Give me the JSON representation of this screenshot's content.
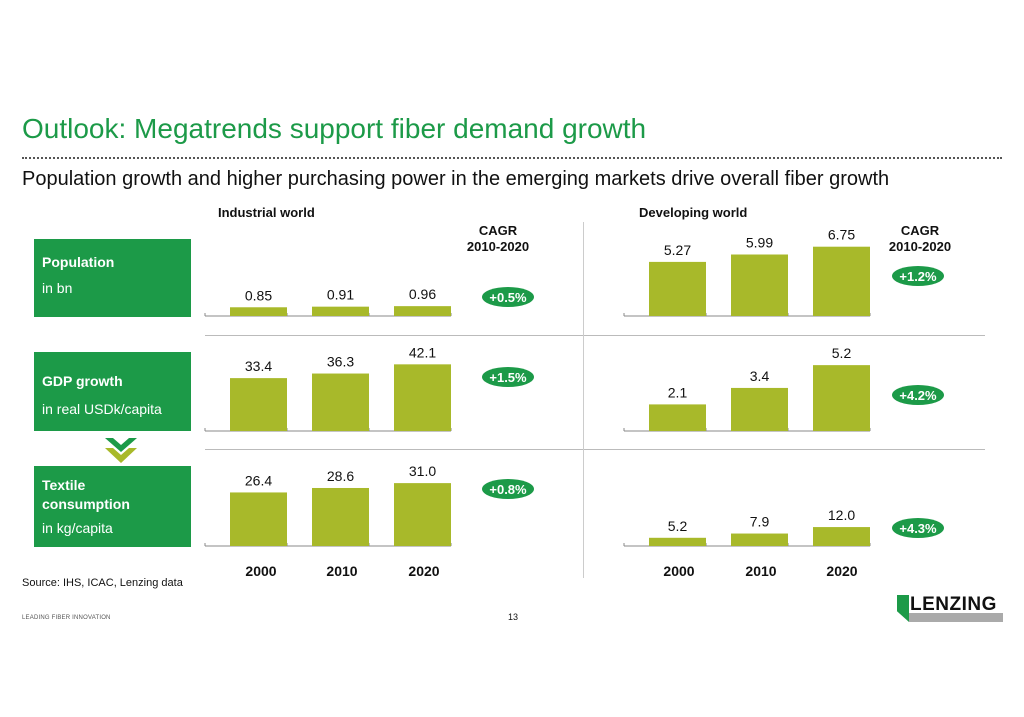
{
  "title": "Outlook: Megatrends support fiber demand growth",
  "subtitle": "Population growth and higher purchasing power in the emerging markets drive overall fiber growth",
  "sections": {
    "industrial": "Industrial world",
    "developing": "Developing world"
  },
  "cagr_header": {
    "line1": "CAGR",
    "line2": "2010-2020"
  },
  "rows": [
    {
      "title": "Population",
      "unit": "in bn"
    },
    {
      "title": "GDP growth",
      "unit": "in real USDk/capita"
    },
    {
      "title": "Textile consumption",
      "unit": "in kg/capita"
    }
  ],
  "years": [
    "2000",
    "2010",
    "2020"
  ],
  "source": "Source: IHS, ICAC, Lenzing data",
  "footer": "LEADING FIBER INNOVATION",
  "page_number": "13",
  "logo_text": "LENZING",
  "colors": {
    "brand_green": "#1c9a48",
    "bar_olive": "#a8b92a",
    "badge_green": "#1c9a48"
  },
  "chart_data": [
    {
      "type": "bar",
      "title": "Population - Industrial world",
      "ylabel": "in bn",
      "categories": [
        "2000",
        "2010",
        "2020"
      ],
      "values": [
        0.85,
        0.91,
        0.96
      ],
      "labels": [
        "0.85",
        "0.91",
        "0.96"
      ],
      "cagr": "+0.5%",
      "ymax": 7.5
    },
    {
      "type": "bar",
      "title": "Population - Developing world",
      "ylabel": "in bn",
      "categories": [
        "2000",
        "2010",
        "2020"
      ],
      "values": [
        5.27,
        5.99,
        6.75
      ],
      "labels": [
        "5.27",
        "5.99",
        "6.75"
      ],
      "cagr": "+1.2%",
      "ymax": 7.5
    },
    {
      "type": "bar",
      "title": "GDP growth - Industrial world",
      "ylabel": "in real USDk/capita",
      "categories": [
        "2000",
        "2010",
        "2020"
      ],
      "values": [
        33.4,
        36.3,
        42.1
      ],
      "labels": [
        "33.4",
        "36.3",
        "42.1"
      ],
      "cagr": "+1.5%",
      "ymax": 48
    },
    {
      "type": "bar",
      "title": "GDP growth - Developing world",
      "ylabel": "in real USDk/capita",
      "categories": [
        "2000",
        "2010",
        "2020"
      ],
      "values": [
        2.1,
        3.4,
        5.2
      ],
      "labels": [
        "2.1",
        "3.4",
        "5.2"
      ],
      "cagr": "+4.2%",
      "ymax": 6.0
    },
    {
      "type": "bar",
      "title": "Textile consumption - Industrial world",
      "ylabel": "in kg/capita",
      "categories": [
        "2000",
        "2010",
        "2020"
      ],
      "values": [
        26.4,
        28.6,
        31.0
      ],
      "labels": [
        "26.4",
        "28.6",
        "31.0"
      ],
      "cagr": "+0.8%",
      "ymax": 35
    },
    {
      "type": "bar",
      "title": "Textile consumption - Developing world",
      "ylabel": "in kg/capita",
      "categories": [
        "2000",
        "2010",
        "2020"
      ],
      "values": [
        5.2,
        7.9,
        12.0
      ],
      "labels": [
        "5.2",
        "7.9",
        "12.0"
      ],
      "cagr": "+4.3%",
      "ymax": 45
    }
  ]
}
